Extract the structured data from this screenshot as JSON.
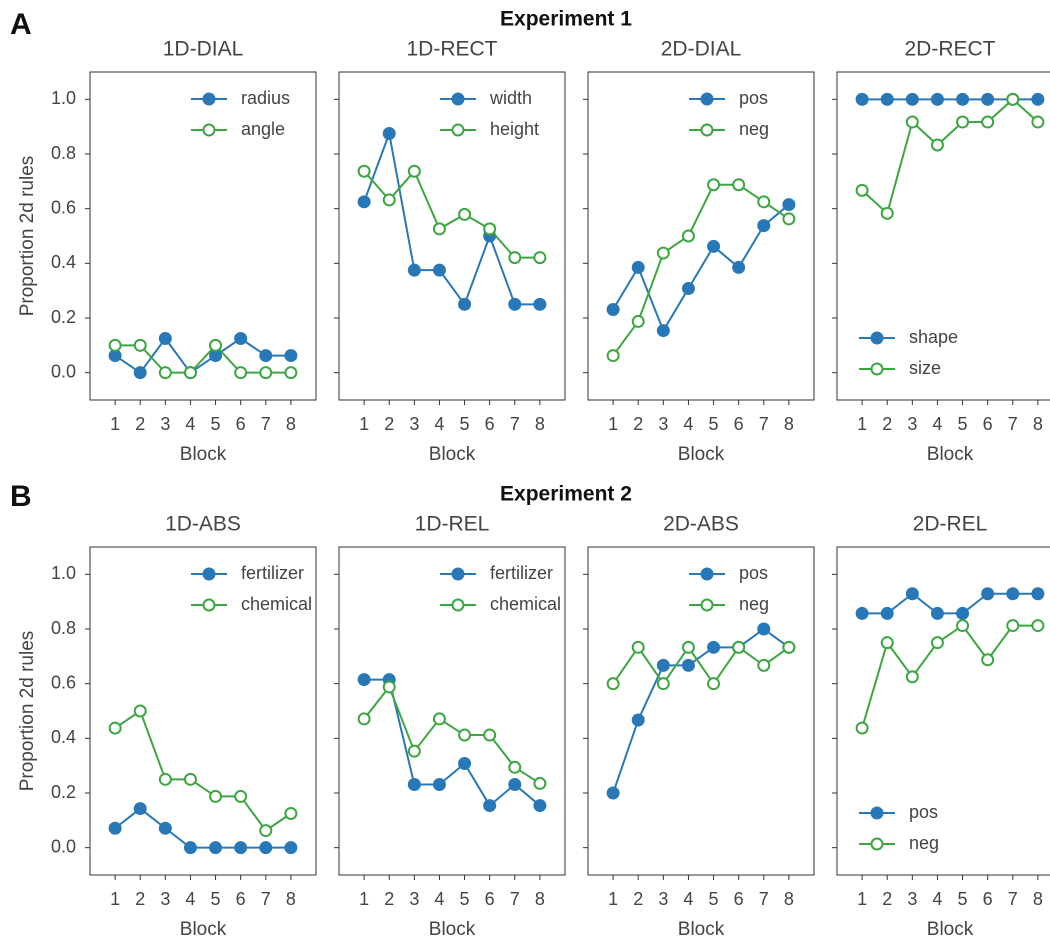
{
  "figure": {
    "sections": [
      {
        "letter": "A",
        "title": "Experiment 1"
      },
      {
        "letter": "B",
        "title": "Experiment 2"
      }
    ]
  },
  "chart_data": [
    {
      "type": "line",
      "title": "1D-DIAL",
      "xlabel": "Block",
      "ylabel": "Proportion 2d rules",
      "x": [
        1,
        2,
        3,
        4,
        5,
        6,
        7,
        8
      ],
      "xlim": [
        0,
        9
      ],
      "xticks": [
        1,
        2,
        3,
        4,
        5,
        6,
        7,
        8
      ],
      "ylim": [
        -0.1,
        1.1
      ],
      "yticks": [
        {
          "value": 0,
          "label": "0.0"
        },
        0.2,
        0.4,
        0.6,
        0.8,
        {
          "value": 1,
          "label": "1.0"
        }
      ],
      "legend": "upper right",
      "series": [
        {
          "name": "radius",
          "color": "#2878b8",
          "values": [
            0.0625,
            0,
            0.125,
            0,
            0.0625,
            0.125,
            0.0625,
            0.0625
          ]
        },
        {
          "name": "angle",
          "color": "#3ca641",
          "markerfill": "#ffffff",
          "values": [
            0.1,
            0.1,
            0,
            0,
            0.1,
            0,
            0,
            0
          ]
        }
      ]
    },
    {
      "type": "line",
      "title": "1D-RECT",
      "xlabel": "Block",
      "x": [
        1,
        2,
        3,
        4,
        5,
        6,
        7,
        8
      ],
      "xlim": [
        0,
        9
      ],
      "xticks": [
        1,
        2,
        3,
        4,
        5,
        6,
        7,
        8
      ],
      "ylim": [
        -0.1,
        1.1
      ],
      "yticks": [
        0,
        0.2,
        0.4,
        0.6,
        0.8,
        1
      ],
      "legend": "upper right",
      "series": [
        {
          "name": "width",
          "color": "#2878b8",
          "values": [
            0.625,
            0.875,
            0.375,
            0.375,
            0.25,
            0.5,
            0.25,
            0.25
          ]
        },
        {
          "name": "height",
          "color": "#3ca641",
          "markerfill": "#ffffff",
          "values": [
            0.737,
            0.632,
            0.737,
            0.526,
            0.579,
            0.526,
            0.421,
            0.421
          ]
        }
      ]
    },
    {
      "type": "line",
      "title": "2D-DIAL",
      "xlabel": "Block",
      "x": [
        1,
        2,
        3,
        4,
        5,
        6,
        7,
        8
      ],
      "xlim": [
        0,
        9
      ],
      "xticks": [
        1,
        2,
        3,
        4,
        5,
        6,
        7,
        8
      ],
      "ylim": [
        -0.1,
        1.1
      ],
      "yticks": [
        0,
        0.2,
        0.4,
        0.6,
        0.8,
        1
      ],
      "legend": "upper right",
      "series": [
        {
          "name": "pos",
          "color": "#2878b8",
          "values": [
            0.231,
            0.385,
            0.154,
            0.308,
            0.462,
            0.385,
            0.538,
            0.615
          ]
        },
        {
          "name": "neg",
          "color": "#3ca641",
          "markerfill": "#ffffff",
          "values": [
            0.0625,
            0.1875,
            0.4375,
            0.5,
            0.6875,
            0.6875,
            0.625,
            0.5625
          ]
        }
      ]
    },
    {
      "type": "line",
      "title": "2D-RECT",
      "xlabel": "Block",
      "x": [
        1,
        2,
        3,
        4,
        5,
        6,
        7,
        8
      ],
      "xlim": [
        0,
        9
      ],
      "xticks": [
        1,
        2,
        3,
        4,
        5,
        6,
        7,
        8
      ],
      "ylim": [
        -0.1,
        1.1
      ],
      "yticks": [
        0,
        0.2,
        0.4,
        0.6,
        0.8,
        1
      ],
      "legend": "lower left",
      "series": [
        {
          "name": "shape",
          "color": "#2878b8",
          "values": [
            1,
            1,
            1,
            1,
            1,
            1,
            1,
            1
          ]
        },
        {
          "name": "size",
          "color": "#3ca641",
          "markerfill": "#ffffff",
          "values": [
            0.667,
            0.583,
            0.917,
            0.833,
            0.917,
            0.917,
            1,
            0.917
          ]
        }
      ]
    },
    {
      "type": "line",
      "title": "1D-ABS",
      "xlabel": "Block",
      "ylabel": "Proportion 2d rules",
      "x": [
        1,
        2,
        3,
        4,
        5,
        6,
        7,
        8
      ],
      "xlim": [
        0,
        9
      ],
      "xticks": [
        1,
        2,
        3,
        4,
        5,
        6,
        7,
        8
      ],
      "ylim": [
        -0.1,
        1.1
      ],
      "yticks": [
        {
          "value": 0,
          "label": "0.0"
        },
        0.2,
        0.4,
        0.6,
        0.8,
        {
          "value": 1,
          "label": "1.0"
        }
      ],
      "legend": "upper right",
      "series": [
        {
          "name": "fertilizer",
          "color": "#2878b8",
          "values": [
            0.071,
            0.143,
            0.071,
            0,
            0,
            0,
            0,
            0
          ]
        },
        {
          "name": "chemical",
          "color": "#3ca641",
          "markerfill": "#ffffff",
          "values": [
            0.4375,
            0.5,
            0.25,
            0.25,
            0.1875,
            0.1875,
            0.0625,
            0.125
          ]
        }
      ]
    },
    {
      "type": "line",
      "title": "1D-REL",
      "xlabel": "Block",
      "x": [
        1,
        2,
        3,
        4,
        5,
        6,
        7,
        8
      ],
      "xlim": [
        0,
        9
      ],
      "xticks": [
        1,
        2,
        3,
        4,
        5,
        6,
        7,
        8
      ],
      "ylim": [
        -0.1,
        1.1
      ],
      "yticks": [
        0,
        0.2,
        0.4,
        0.6,
        0.8,
        1
      ],
      "legend": "upper right",
      "series": [
        {
          "name": "fertilizer",
          "color": "#2878b8",
          "values": [
            0.615,
            0.615,
            0.231,
            0.231,
            0.308,
            0.154,
            0.231,
            0.154
          ]
        },
        {
          "name": "chemical",
          "color": "#3ca641",
          "markerfill": "#ffffff",
          "values": [
            0.471,
            0.588,
            0.353,
            0.471,
            0.412,
            0.412,
            0.294,
            0.235
          ]
        }
      ]
    },
    {
      "type": "line",
      "title": "2D-ABS",
      "xlabel": "Block",
      "x": [
        1,
        2,
        3,
        4,
        5,
        6,
        7,
        8
      ],
      "xlim": [
        0,
        9
      ],
      "xticks": [
        1,
        2,
        3,
        4,
        5,
        6,
        7,
        8
      ],
      "ylim": [
        -0.1,
        1.1
      ],
      "yticks": [
        0,
        0.2,
        0.4,
        0.6,
        0.8,
        1
      ],
      "legend": "upper right",
      "series": [
        {
          "name": "pos",
          "color": "#2878b8",
          "values": [
            0.2,
            0.467,
            0.667,
            0.667,
            0.733,
            0.733,
            0.8,
            0.733
          ]
        },
        {
          "name": "neg",
          "color": "#3ca641",
          "markerfill": "#ffffff",
          "values": [
            0.6,
            0.733,
            0.6,
            0.733,
            0.6,
            0.733,
            0.667,
            0.733
          ]
        }
      ]
    },
    {
      "type": "line",
      "title": "2D-REL",
      "xlabel": "Block",
      "x": [
        1,
        2,
        3,
        4,
        5,
        6,
        7,
        8
      ],
      "xlim": [
        0,
        9
      ],
      "xticks": [
        1,
        2,
        3,
        4,
        5,
        6,
        7,
        8
      ],
      "ylim": [
        -0.1,
        1.1
      ],
      "yticks": [
        0,
        0.2,
        0.4,
        0.6,
        0.8,
        1
      ],
      "legend": "lower left",
      "series": [
        {
          "name": "pos",
          "color": "#2878b8",
          "values": [
            0.857,
            0.857,
            0.929,
            0.857,
            0.857,
            0.929,
            0.929,
            0.929
          ]
        },
        {
          "name": "neg",
          "color": "#3ca641",
          "markerfill": "#ffffff",
          "values": [
            0.4375,
            0.75,
            0.625,
            0.75,
            0.8125,
            0.6875,
            0.8125,
            0.8125
          ]
        }
      ]
    }
  ]
}
